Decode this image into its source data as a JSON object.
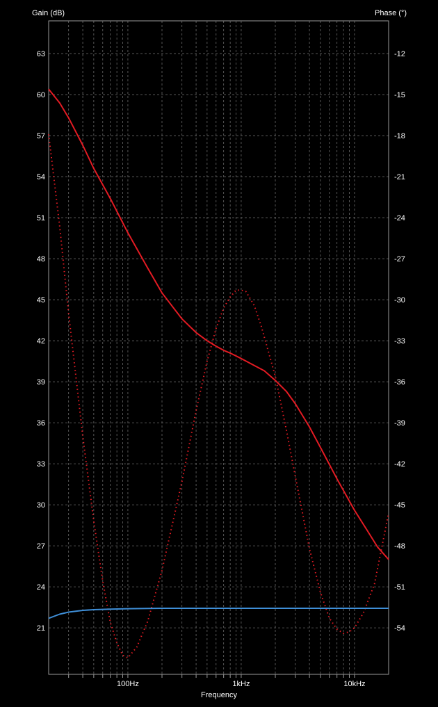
{
  "chart_data": {
    "type": "line",
    "xlabel": "Frequency",
    "ylabel": "Gain (dB)",
    "y2label": "Phase (°)",
    "xscale": "log",
    "xlim": [
      20,
      20000
    ],
    "ylim": [
      17.6,
      65.4
    ],
    "y2lim": [
      -57.4,
      -9.6
    ],
    "grid": true,
    "x_ticks": [
      {
        "value": 100,
        "label": "100Hz"
      },
      {
        "value": 1000,
        "label": "1kHz"
      },
      {
        "value": 10000,
        "label": "10kHz"
      }
    ],
    "y_ticks": [
      21,
      24,
      27,
      30,
      33,
      36,
      39,
      42,
      45,
      48,
      51,
      54,
      57,
      60,
      63
    ],
    "y2_ticks": [
      -54,
      -51,
      -48,
      -45,
      -42,
      -39,
      -36,
      -33,
      -30,
      -27,
      -24,
      -21,
      -18,
      -15,
      -12
    ],
    "series": [
      {
        "axis": "left",
        "color": "#e31b23",
        "style": "solid",
        "x": [
          20,
          25,
          30,
          40,
          50,
          70,
          100,
          150,
          200,
          300,
          400,
          500,
          600,
          700,
          800,
          1000,
          1300,
          1600,
          2000,
          2500,
          3000,
          4000,
          5000,
          7000,
          10000,
          13000,
          16000,
          20000
        ],
        "y": [
          60.4,
          59.4,
          58.3,
          56.3,
          54.6,
          52.4,
          49.9,
          47.3,
          45.5,
          43.6,
          42.6,
          42.0,
          41.6,
          41.3,
          41.1,
          40.7,
          40.2,
          39.8,
          39.1,
          38.3,
          37.4,
          35.7,
          34.2,
          31.9,
          29.6,
          28.1,
          26.9,
          26.0
        ]
      },
      {
        "axis": "right",
        "color": "#e31b23",
        "style": "dotted",
        "x": [
          20,
          25,
          30,
          40,
          50,
          60,
          70,
          80,
          90,
          100,
          120,
          150,
          200,
          300,
          400,
          500,
          600,
          700,
          800,
          900,
          1000,
          1100,
          1300,
          1500,
          2000,
          2500,
          3000,
          4000,
          5000,
          6000,
          7000,
          8000,
          9000,
          10000,
          12000,
          15000,
          20000
        ],
        "y": [
          -17.9,
          -24.6,
          -31.0,
          -40.0,
          -46.2,
          -50.6,
          -53.6,
          -55.1,
          -56.0,
          -56.2,
          -55.4,
          -53.5,
          -49.8,
          -43.3,
          -38.1,
          -34.5,
          -32.1,
          -30.6,
          -29.8,
          -29.3,
          -29.3,
          -29.4,
          -30.4,
          -31.9,
          -35.6,
          -39.5,
          -42.9,
          -48.2,
          -51.4,
          -53.3,
          -54.1,
          -54.4,
          -54.3,
          -54.0,
          -52.9,
          -50.8,
          -45.6
        ]
      },
      {
        "axis": "left",
        "color": "#3f8fd8",
        "style": "solid",
        "x": [
          20,
          25,
          30,
          40,
          50,
          70,
          100,
          150,
          200,
          500,
          1000,
          2000,
          5000,
          10000,
          20000
        ],
        "y": [
          21.7,
          22.0,
          22.15,
          22.28,
          22.33,
          22.37,
          22.4,
          22.42,
          22.43,
          22.43,
          22.43,
          22.43,
          22.43,
          22.43,
          22.43
        ]
      }
    ]
  }
}
